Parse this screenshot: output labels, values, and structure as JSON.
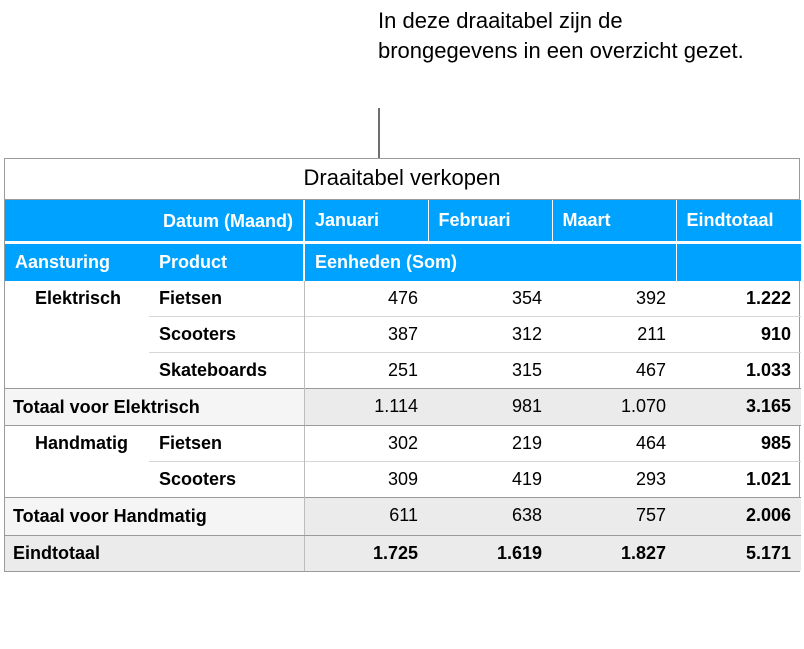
{
  "caption": "In deze draaitabel zijn de brongegevens in een overzicht gezet.",
  "table": {
    "title": "Draaitabel verkopen",
    "colors": {
      "header_bg": "#00a2ff",
      "header_fg": "#ffffff",
      "subtotal_bg": "#ebebeb",
      "subtotal_hdr_bg": "#f5f5f5",
      "border_main": "#9a9a9a",
      "border_minor": "#d6d6d6"
    },
    "header": {
      "date_field": "Datum (Maand)",
      "months": [
        "Januari",
        "Februari",
        "Maart"
      ],
      "grand_col": "Eindtotaal",
      "row_fields": [
        "Aansturing",
        "Product"
      ],
      "measure": "Eenheden (Som)"
    },
    "groups": [
      {
        "name": "Elektrisch",
        "rows": [
          {
            "product": "Fietsen",
            "values": [
              "476",
              "354",
              "392"
            ],
            "total": "1.222"
          },
          {
            "product": "Scooters",
            "values": [
              "387",
              "312",
              "211"
            ],
            "total": "910"
          },
          {
            "product": "Skateboards",
            "values": [
              "251",
              "315",
              "467"
            ],
            "total": "1.033"
          }
        ],
        "subtotal_label": "Totaal voor Elektrisch",
        "subtotal_values": [
          "1.114",
          "981",
          "1.070"
        ],
        "subtotal_total": "3.165"
      },
      {
        "name": "Handmatig",
        "rows": [
          {
            "product": "Fietsen",
            "values": [
              "302",
              "219",
              "464"
            ],
            "total": "985"
          },
          {
            "product": "Scooters",
            "values": [
              "309",
              "419",
              "293"
            ],
            "total": "1.021"
          }
        ],
        "subtotal_label": "Totaal voor Handmatig",
        "subtotal_values": [
          "611",
          "638",
          "757"
        ],
        "subtotal_total": "2.006"
      }
    ],
    "grand": {
      "label": "Eindtotaal",
      "values": [
        "1.725",
        "1.619",
        "1.827"
      ],
      "total": "5.171"
    }
  }
}
